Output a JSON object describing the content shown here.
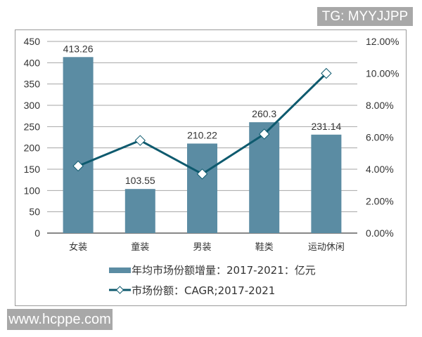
{
  "watermarks": {
    "top_right": "TG: MYYJJPP",
    "bottom_left": "www.hcppe.com"
  },
  "colors": {
    "bar": "#5b8ca3",
    "line": "#0e5a6e",
    "grid": "#a6a6a6",
    "axis": "#404040",
    "text": "#333333"
  },
  "chart_data": {
    "type": "bar+line",
    "title": "",
    "categories": [
      "女装",
      "童装",
      "男装",
      "鞋类",
      "运动休闲"
    ],
    "series": [
      {
        "name": "年均市场份额增量：2017-2021：亿元",
        "type": "bar",
        "axis": "left",
        "values": [
          413.26,
          103.55,
          210.22,
          260.3,
          231.14
        ],
        "labels": [
          "413.26",
          "103.55",
          "210.22",
          "260.3",
          "231.14"
        ]
      },
      {
        "name": "市场份额：CAGR;2017-2021",
        "type": "line",
        "axis": "right",
        "marker": "diamond",
        "values": [
          4.2,
          5.8,
          3.7,
          6.2,
          10.0
        ]
      }
    ],
    "left_axis": {
      "ylim": [
        0,
        450
      ],
      "ticks": [
        "0",
        "50",
        "100",
        "150",
        "200",
        "250",
        "300",
        "350",
        "400",
        "450"
      ]
    },
    "right_axis": {
      "ylim": [
        0,
        12
      ],
      "ticks": [
        "0.00%",
        "2.00%",
        "4.00%",
        "6.00%",
        "8.00%",
        "10.00%",
        "12.00%"
      ]
    },
    "xlabel": "",
    "ylabel": "",
    "grid": true,
    "legend_position": "bottom"
  },
  "legend": {
    "bar_label": "年均市场份额增量：2017-2021：亿元",
    "line_label": "市场份额：CAGR;2017-2021"
  }
}
